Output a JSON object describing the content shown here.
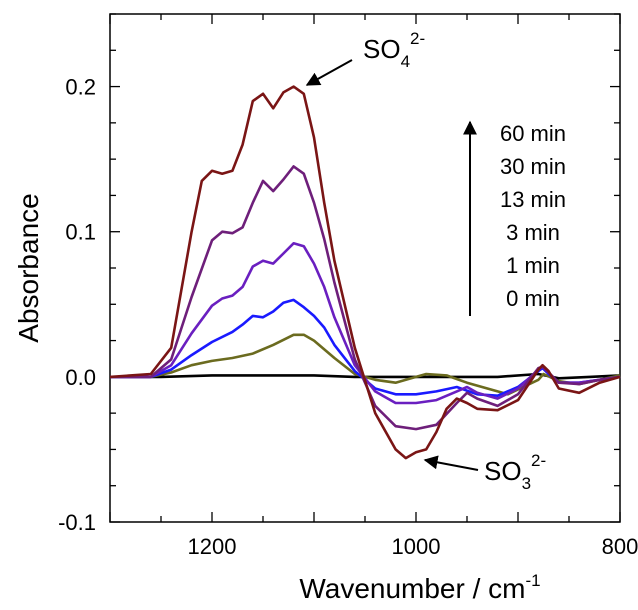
{
  "chart_data": {
    "type": "line",
    "xlabel": "Wavenumber / cm",
    "xlabel_sup": "-1",
    "ylabel": "Absorbance",
    "xlim": [
      1300,
      800
    ],
    "ylim": [
      -0.1,
      0.25
    ],
    "x_ticks": [
      1200,
      1000,
      800
    ],
    "x_tick_labels": [
      "1200",
      "1000",
      "800"
    ],
    "y_ticks": [
      -0.1,
      0.0,
      0.1,
      0.2
    ],
    "y_tick_labels": [
      "-0.1",
      "0.0",
      "0.1",
      "0.2"
    ],
    "grid": false,
    "legend_labels": [
      "60 min",
      "30 min",
      "13 min",
      "3 min",
      "1 min",
      "0 min"
    ],
    "annotations": {
      "sulfate": {
        "base": "SO",
        "sub": "4",
        "sup": "2-"
      },
      "sulfite": {
        "base": "SO",
        "sub": "3",
        "sup": "2-"
      }
    },
    "series": [
      {
        "label": "0 min",
        "color": "#000000",
        "x": [
          1300,
          1250,
          1200,
          1150,
          1100,
          1060,
          1040,
          1000,
          960,
          920,
          880,
          860,
          830,
          800
        ],
        "y": [
          0.0,
          0.0,
          0.001,
          0.001,
          0.001,
          0.0,
          0.0,
          0.0,
          0.0,
          0.0,
          0.002,
          -0.001,
          0.0,
          0.001
        ]
      },
      {
        "label": "1 min",
        "color": "#6b6b1f",
        "x": [
          1300,
          1260,
          1240,
          1220,
          1200,
          1180,
          1160,
          1140,
          1120,
          1110,
          1100,
          1080,
          1060,
          1040,
          1020,
          1000,
          990,
          970,
          950,
          930,
          910,
          880,
          875,
          860,
          840,
          820,
          800
        ],
        "y": [
          0.0,
          0.0,
          0.003,
          0.008,
          0.011,
          0.013,
          0.016,
          0.022,
          0.029,
          0.029,
          0.025,
          0.013,
          0.002,
          -0.002,
          -0.004,
          0.0,
          0.002,
          0.001,
          -0.004,
          -0.008,
          -0.012,
          -0.002,
          0.002,
          -0.003,
          -0.005,
          -0.002,
          0.001
        ]
      },
      {
        "label": "3 min",
        "color": "#1a1aff",
        "x": [
          1300,
          1260,
          1240,
          1220,
          1200,
          1180,
          1170,
          1160,
          1150,
          1140,
          1130,
          1120,
          1110,
          1100,
          1090,
          1080,
          1060,
          1040,
          1020,
          1000,
          980,
          960,
          940,
          920,
          900,
          880,
          876,
          870,
          860,
          840,
          820,
          800
        ],
        "y": [
          0.0,
          0.0,
          0.005,
          0.015,
          0.024,
          0.031,
          0.036,
          0.042,
          0.041,
          0.045,
          0.051,
          0.053,
          0.048,
          0.042,
          0.034,
          0.022,
          0.004,
          -0.008,
          -0.012,
          -0.012,
          -0.01,
          -0.007,
          -0.012,
          -0.013,
          -0.007,
          0.004,
          0.006,
          0.002,
          -0.004,
          -0.004,
          -0.002,
          0.0
        ]
      },
      {
        "label": "13 min",
        "color": "#6a1fc0",
        "x": [
          1300,
          1260,
          1240,
          1220,
          1200,
          1190,
          1180,
          1170,
          1160,
          1150,
          1140,
          1130,
          1120,
          1110,
          1100,
          1090,
          1080,
          1060,
          1040,
          1020,
          1000,
          980,
          960,
          950,
          940,
          920,
          900,
          880,
          876,
          870,
          860,
          840,
          820,
          800
        ],
        "y": [
          0.0,
          0.0,
          0.008,
          0.03,
          0.049,
          0.054,
          0.056,
          0.062,
          0.076,
          0.08,
          0.078,
          0.085,
          0.092,
          0.09,
          0.078,
          0.062,
          0.041,
          0.008,
          -0.01,
          -0.018,
          -0.018,
          -0.016,
          -0.01,
          -0.007,
          -0.011,
          -0.015,
          -0.008,
          0.005,
          0.007,
          0.003,
          -0.004,
          -0.004,
          -0.002,
          0.0
        ]
      },
      {
        "label": "30 min",
        "color": "#6e1f7a",
        "x": [
          1300,
          1260,
          1240,
          1220,
          1200,
          1190,
          1180,
          1170,
          1160,
          1150,
          1140,
          1130,
          1120,
          1110,
          1100,
          1090,
          1080,
          1060,
          1040,
          1020,
          1000,
          980,
          960,
          950,
          940,
          920,
          900,
          880,
          876,
          870,
          860,
          840,
          820,
          800
        ],
        "y": [
          0.0,
          0.0,
          0.012,
          0.055,
          0.094,
          0.1,
          0.099,
          0.103,
          0.12,
          0.135,
          0.128,
          0.136,
          0.145,
          0.14,
          0.12,
          0.095,
          0.065,
          0.012,
          -0.02,
          -0.034,
          -0.036,
          -0.033,
          -0.018,
          -0.011,
          -0.015,
          -0.02,
          -0.012,
          0.006,
          0.007,
          0.003,
          -0.004,
          -0.005,
          -0.002,
          0.0
        ]
      },
      {
        "label": "60 min",
        "color": "#7a1515",
        "x": [
          1300,
          1260,
          1240,
          1220,
          1210,
          1200,
          1190,
          1180,
          1170,
          1160,
          1150,
          1140,
          1130,
          1120,
          1110,
          1100,
          1090,
          1080,
          1060,
          1040,
          1020,
          1010,
          1000,
          990,
          980,
          970,
          960,
          950,
          940,
          920,
          900,
          880,
          876,
          870,
          860,
          840,
          820,
          800
        ],
        "y": [
          0.0,
          0.002,
          0.02,
          0.1,
          0.135,
          0.142,
          0.14,
          0.142,
          0.16,
          0.19,
          0.195,
          0.185,
          0.196,
          0.2,
          0.195,
          0.165,
          0.12,
          0.08,
          0.02,
          -0.025,
          -0.05,
          -0.056,
          -0.052,
          -0.05,
          -0.038,
          -0.022,
          -0.015,
          -0.018,
          -0.022,
          -0.023,
          -0.016,
          0.005,
          0.008,
          0.004,
          -0.008,
          -0.011,
          -0.004,
          0.0
        ]
      }
    ]
  }
}
